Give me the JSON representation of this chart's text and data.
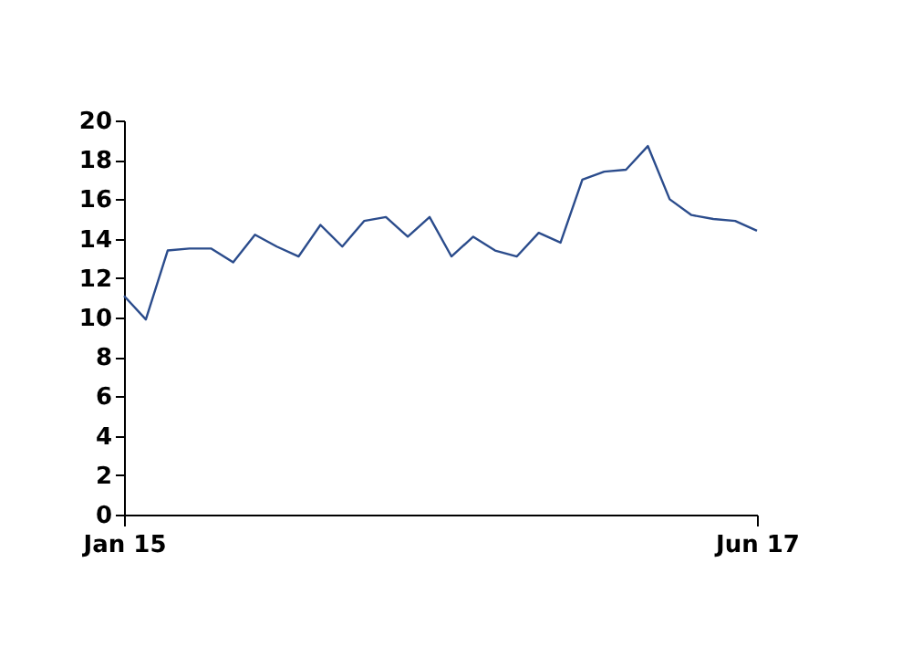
{
  "chart_data": {
    "type": "line",
    "categories": [
      "Jan 15",
      null,
      null,
      null,
      null,
      null,
      null,
      null,
      null,
      null,
      null,
      null,
      null,
      null,
      null,
      null,
      null,
      null,
      null,
      null,
      null,
      null,
      null,
      null,
      null,
      null,
      null,
      null,
      null,
      "Jun 17"
    ],
    "series": [
      {
        "color": "#2b4c8c",
        "values": [
          11.1,
          9.9,
          13.4,
          13.5,
          13.5,
          12.8,
          14.2,
          13.6,
          13.1,
          14.7,
          13.6,
          14.9,
          15.1,
          14.1,
          15.1,
          13.1,
          14.1,
          13.4,
          13.1,
          14.3,
          13.8,
          17.0,
          17.4,
          17.5,
          18.7,
          16.0,
          15.2,
          15.0,
          14.9,
          14.4
        ]
      }
    ],
    "ylim": [
      0,
      20
    ],
    "yticks": [
      0,
      2,
      4,
      6,
      8,
      10,
      12,
      14,
      16,
      18,
      20
    ],
    "grid": false,
    "legend": false,
    "marker": "none",
    "line_style": "solid"
  }
}
